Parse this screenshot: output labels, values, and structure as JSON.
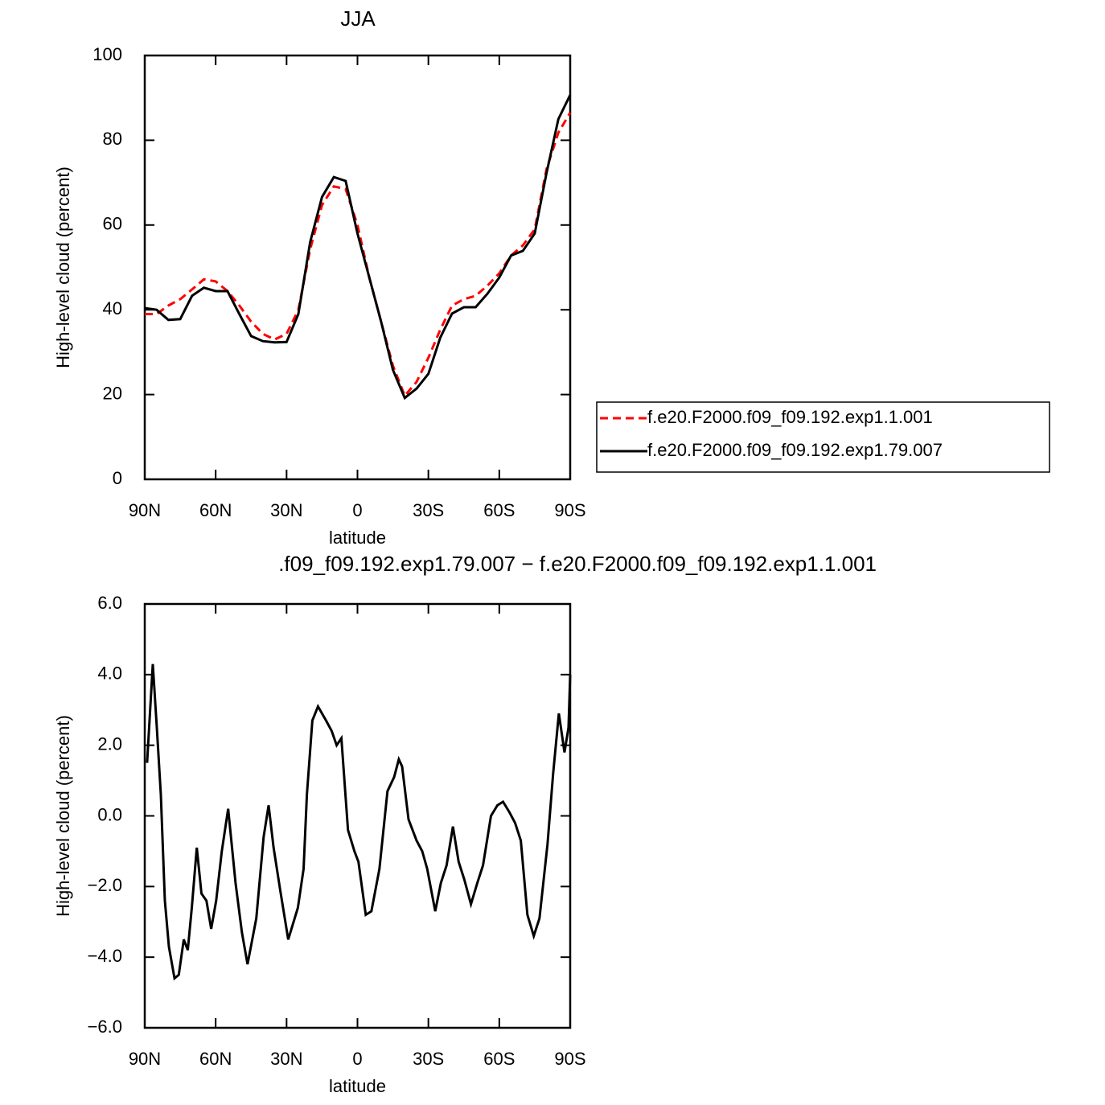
{
  "chart_data": [
    {
      "type": "line",
      "title": "JJA",
      "x_label": "latitude",
      "y_label": "High-level cloud (percent)",
      "xlim": [
        90,
        -90
      ],
      "xticks": [
        {
          "value": 90,
          "label": "90N"
        },
        {
          "value": 60,
          "label": "60N"
        },
        {
          "value": 30,
          "label": "30N"
        },
        0,
        {
          "value": -30,
          "label": "30S"
        },
        {
          "value": -60,
          "label": "60S"
        },
        {
          "value": -90,
          "label": "90S"
        }
      ],
      "ylim": [
        0,
        100
      ],
      "yticks": [
        0,
        20,
        40,
        60,
        80,
        100
      ],
      "grid": false,
      "legend": "right",
      "x": [
        90,
        85,
        80,
        75,
        70,
        65,
        60,
        55,
        50,
        45,
        40,
        35,
        30,
        25,
        20,
        15,
        10,
        5,
        0,
        -5,
        -10,
        -15,
        -20,
        -25,
        -30,
        -35,
        -40,
        -45,
        -50,
        -55,
        -60,
        -65,
        -70,
        -75,
        -80,
        -85,
        -90
      ],
      "series": [
        {
          "name": "f.e20.F2000.f09_f09.192.exp1.1.001",
          "color": "#ff0000",
          "dash": true,
          "values": [
            39,
            39,
            41,
            42.5,
            44.8,
            47.2,
            46.7,
            44.4,
            41,
            37.2,
            34.3,
            33,
            34.3,
            40,
            54.3,
            64.7,
            69.1,
            68.5,
            60,
            47.6,
            37.2,
            26.8,
            19.7,
            23,
            28.7,
            35.3,
            41,
            42.5,
            43.3,
            45.7,
            48.6,
            52.8,
            55.2,
            59,
            73.2,
            81.8,
            86.5
          ]
        },
        {
          "name": "f.e20.F2000.f09_f09.192.exp1.79.007",
          "color": "#000000",
          "dash": false,
          "values": [
            40.4,
            40,
            37.6,
            37.8,
            43.3,
            45.2,
            44.4,
            44.4,
            39,
            33.8,
            32.6,
            32.3,
            32.4,
            39,
            56,
            66.6,
            71.3,
            70.4,
            58,
            47.6,
            37.2,
            25.8,
            19.2,
            21.4,
            24.9,
            33.4,
            39.1,
            40.6,
            40.6,
            43.8,
            47.6,
            52.8,
            53.9,
            58,
            72.3,
            85,
            90.7
          ]
        }
      ]
    },
    {
      "type": "line",
      "title": ".f09_f09.192.exp1.79.007 − f.e20.F2000.f09_f09.192.exp1.1.001",
      "x_label": "latitude",
      "y_label": "High-level cloud (percent)",
      "xlim": [
        90,
        -90
      ],
      "xticks": [
        {
          "value": 90,
          "label": "90N"
        },
        {
          "value": 60,
          "label": "60N"
        },
        {
          "value": 30,
          "label": "30N"
        },
        0,
        {
          "value": -30,
          "label": "30S"
        },
        {
          "value": -60,
          "label": "60S"
        },
        {
          "value": -90,
          "label": "90S"
        }
      ],
      "ylim": [
        -6,
        6
      ],
      "yticks": [
        {
          "value": -6,
          "label": "−6.0"
        },
        {
          "value": -4,
          "label": "−4.0"
        },
        {
          "value": -2,
          "label": "−2.0"
        },
        {
          "value": 0,
          "label": "0.0"
        },
        {
          "value": 2,
          "label": "2.0"
        },
        {
          "value": 4,
          "label": "4.0"
        },
        {
          "value": 6,
          "label": "6.0"
        }
      ],
      "grid": false,
      "x": [
        89,
        86.6,
        84.9,
        83.2,
        81.5,
        79.8,
        77.4,
        75.6,
        73.5,
        71.8,
        70.1,
        68,
        66,
        63.9,
        61.9,
        59.8,
        57.4,
        54.7,
        51.6,
        48.9,
        46.5,
        42.8,
        39.7,
        37.6,
        35.5,
        32.7,
        29.3,
        25.2,
        22.8,
        21.4,
        19.1,
        16.7,
        13.3,
        10.9,
        8.8,
        6.8,
        4,
        1.3,
        -0.4,
        -3.5,
        -5.9,
        -9.3,
        -12.7,
        -15.5,
        -17.5,
        -18.9,
        -21.6,
        -25,
        -27.4,
        -29.5,
        -32.9,
        -35.3,
        -37.7,
        -40.4,
        -42.8,
        -45.2,
        -48,
        -50.7,
        -53.1,
        -56.5,
        -59.2,
        -61.6,
        -64.3,
        -66.7,
        -69.1,
        -71.9,
        -74.6,
        -77,
        -80.4,
        -82.8,
        -85.2,
        -87.6,
        -89.3,
        -90
      ],
      "series": [
        {
          "color": "#000000",
          "dash": false,
          "values": [
            1.5,
            4.3,
            2.5,
            0.6,
            -2.4,
            -3.7,
            -4.6,
            -4.5,
            -3.5,
            -3.8,
            -2.6,
            -0.9,
            -2.2,
            -2.4,
            -3.2,
            -2.4,
            -1,
            0.2,
            -1.9,
            -3.3,
            -4.2,
            -2.9,
            -0.6,
            0.3,
            -0.9,
            -2.1,
            -3.5,
            -2.6,
            -1.5,
            0.6,
            2.7,
            3.1,
            2.7,
            2.4,
            2,
            2.2,
            -0.4,
            -1,
            -1.3,
            -2.8,
            -2.7,
            -1.5,
            0.7,
            1.1,
            1.6,
            1.4,
            -0.1,
            -0.7,
            -1,
            -1.5,
            -2.7,
            -1.9,
            -1.4,
            -0.3,
            -1.3,
            -1.8,
            -2.5,
            -1.9,
            -1.4,
            0,
            0.3,
            0.4,
            0.1,
            -0.2,
            -0.7,
            -2.8,
            -3.4,
            -2.9,
            -0.8,
            1.2,
            2.9,
            1.8,
            2.5,
            4
          ]
        }
      ]
    }
  ]
}
